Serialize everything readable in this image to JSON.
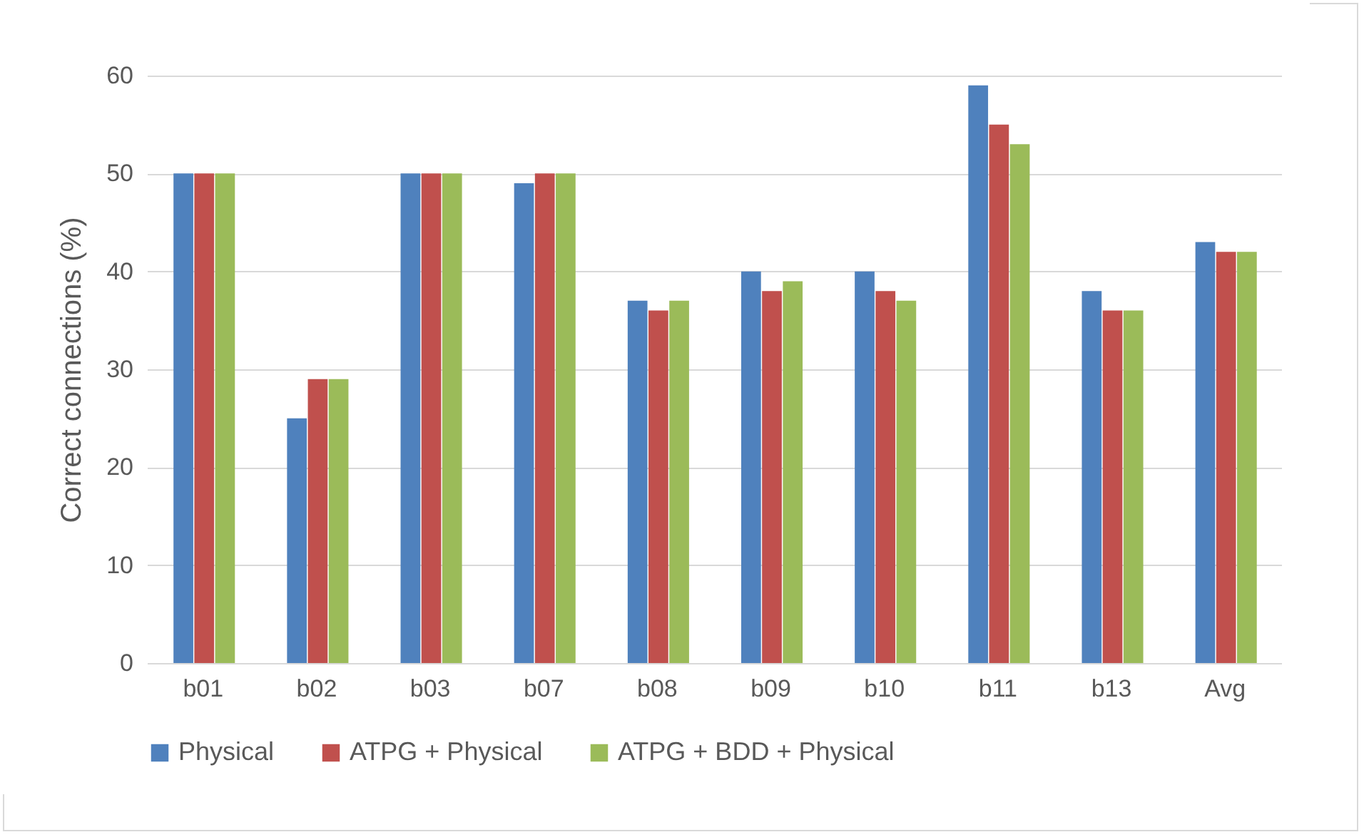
{
  "chart_data": {
    "type": "bar",
    "ylabel": "Correct connections (%)",
    "categories": [
      "b01",
      "b02",
      "b03",
      "b07",
      "b08",
      "b09",
      "b10",
      "b11",
      "b13",
      "Avg"
    ],
    "series": [
      {
        "name": "Physical",
        "color": "#4f81bd",
        "values": [
          50,
          25,
          50,
          49,
          37,
          40,
          40,
          59,
          38,
          43
        ]
      },
      {
        "name": "ATPG + Physical",
        "color": "#c0504d",
        "values": [
          50,
          29,
          50,
          50,
          36,
          38,
          38,
          55,
          36,
          42
        ]
      },
      {
        "name": "ATPG + BDD + Physical",
        "color": "#9bbb59",
        "values": [
          50,
          29,
          50,
          50,
          37,
          39,
          37,
          53,
          36,
          42
        ]
      }
    ],
    "ylim": [
      0,
      60
    ],
    "yticks": [
      0,
      10,
      20,
      30,
      40,
      50,
      60
    ],
    "grid": "y",
    "legend": "bottom"
  }
}
